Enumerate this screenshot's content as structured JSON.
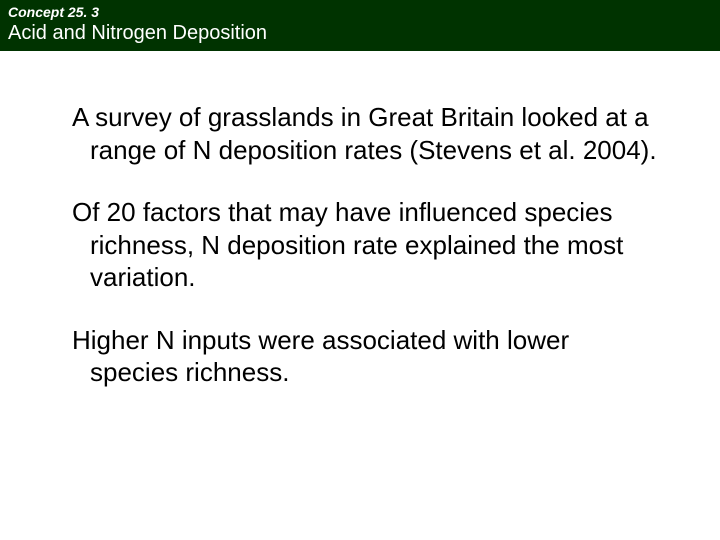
{
  "header": {
    "concept_label": "Concept 25. 3",
    "title": "Acid and Nitrogen Deposition"
  },
  "body": {
    "paragraphs": [
      "A survey of grasslands in Great Britain looked at a range of N deposition rates (Stevens et al. 2004).",
      "Of 20 factors that may have influenced species richness, N deposition rate explained the most variation.",
      "Higher N inputs were associated with lower species richness."
    ]
  }
}
